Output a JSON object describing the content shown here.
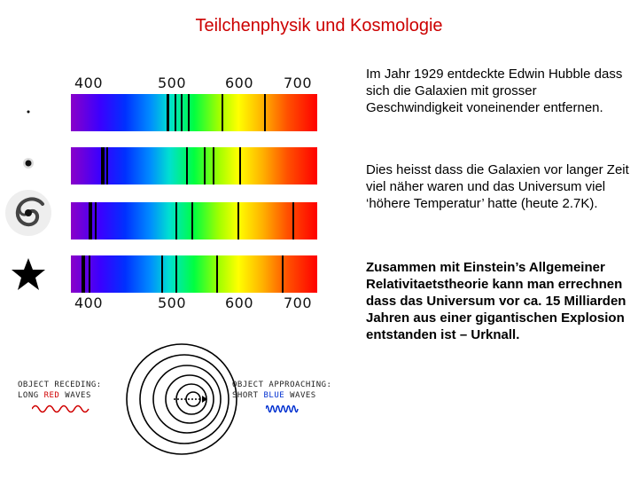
{
  "title": "Teilchenphysik und Kosmologie",
  "figure": {
    "top_ticks": [
      "400",
      "500",
      "600",
      "700"
    ],
    "bottom_ticks": [
      "400",
      "500",
      "600",
      "700"
    ],
    "object_icons": [
      "dot-star-icon",
      "small-galaxy-icon",
      "spiral-galaxy-icon",
      "star-icon"
    ],
    "receding_label": {
      "line1": "OBJECT RECEDING:",
      "line2_a": "LONG ",
      "line2_b": "RED",
      "line2_c": " WAVES"
    },
    "approaching_label": {
      "line1": "OBJECT APPROACHING:",
      "line2_a": "SHORT ",
      "line2_b": "BLUE",
      "line2_c": " WAVES"
    }
  },
  "text": {
    "para1": "Im Jahr 1929 entdeckte Edwin Hubble dass sich die Galaxien mit grosser Geschwindigkeit voneinender entfernen.",
    "para2": "Dies heisst dass die Galaxien vor langer Zeit viel näher waren und das Universum viel ‘höhere Temperatur’ hatte (heute 2.7K).",
    "para3": "Zusammen mit Einstein’s Allgemeiner Relativitaetstheorie kann man errechnen dass das Universum vor ca. 15 Milliarden Jahren aus einer gigantischen Explosion entstanden ist – Urknall."
  }
}
